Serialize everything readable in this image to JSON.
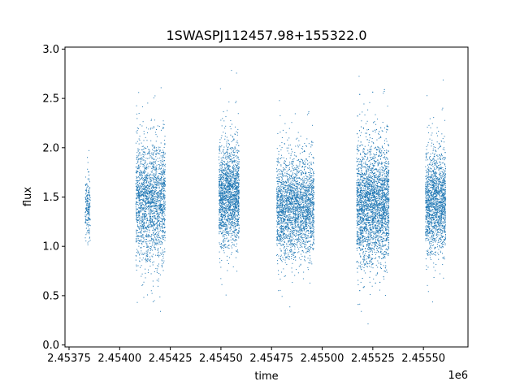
{
  "chart_data": {
    "type": "scatter",
    "title": "1SWASPJ112457.98+155322.0",
    "xlabel": "time",
    "ylabel": "flux",
    "x_offset_label": "1e6",
    "xlim": [
      2453730,
      2455720
    ],
    "ylim": [
      -0.02,
      3.02
    ],
    "x_ticks": [
      2453750,
      2454000,
      2454250,
      2454500,
      2454750,
      2455000,
      2455250,
      2455500
    ],
    "x_tick_labels": [
      "2.45375",
      "2.45400",
      "2.45425",
      "2.45450",
      "2.45475",
      "2.45500",
      "2.45525",
      "2.45550"
    ],
    "y_ticks": [
      0.0,
      0.5,
      1.0,
      1.5,
      2.0,
      2.5,
      3.0
    ],
    "y_tick_labels": [
      "0.0",
      "0.5",
      "1.0",
      "1.5",
      "2.0",
      "2.5",
      "3.0"
    ],
    "grid": false,
    "marker_color": "#1f77b4",
    "observing_seasons": [
      {
        "x_start": 2453830,
        "x_end": 2453855,
        "flux_center": 1.4,
        "flux_spread": 0.15,
        "flux_min": 0.87,
        "flux_max": 2.22,
        "density": 0.6
      },
      {
        "x_start": 2454080,
        "x_end": 2454225,
        "flux_center": 1.45,
        "flux_spread": 0.3,
        "flux_min": 0.28,
        "flux_max": 2.88,
        "density": 1.0
      },
      {
        "x_start": 2454490,
        "x_end": 2454590,
        "flux_center": 1.52,
        "flux_spread": 0.25,
        "flux_min": 0.15,
        "flux_max": 2.87,
        "density": 1.3
      },
      {
        "x_start": 2454775,
        "x_end": 2454960,
        "flux_center": 1.4,
        "flux_spread": 0.25,
        "flux_min": 0.38,
        "flux_max": 2.6,
        "density": 1.0
      },
      {
        "x_start": 2455170,
        "x_end": 2455330,
        "flux_center": 1.43,
        "flux_spread": 0.3,
        "flux_min": 0.1,
        "flux_max": 2.85,
        "density": 1.5
      },
      {
        "x_start": 2455510,
        "x_end": 2455610,
        "flux_center": 1.45,
        "flux_spread": 0.25,
        "flux_min": 0.38,
        "flux_max": 2.7,
        "density": 1.2
      }
    ]
  }
}
